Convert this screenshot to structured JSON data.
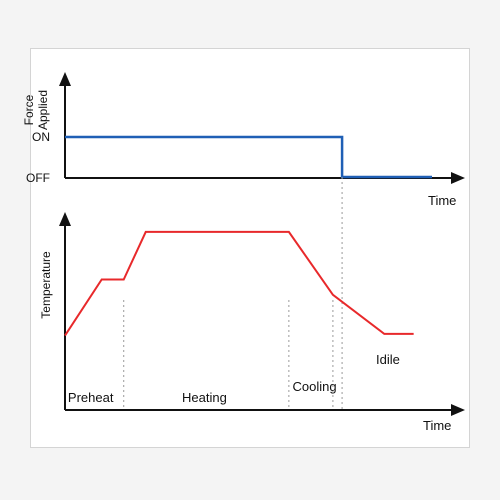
{
  "colors": {
    "force_line": "#1f5fb5",
    "temperature_line": "#e8292b",
    "axis": "#111111",
    "guide": "#9a9a9a",
    "frame_bg": "#ffffff",
    "page_bg": "#f4f4f4"
  },
  "chart_data": [
    {
      "type": "line",
      "title": "",
      "xlabel": "Time",
      "ylabel_lines": [
        "Force",
        "Applied"
      ],
      "y_ticks": [
        "ON",
        "OFF"
      ],
      "y_levels": {
        "ON": 1,
        "OFF": 0
      },
      "x_range": [
        0,
        100
      ],
      "grid": false,
      "series": [
        {
          "x": [
            0,
            75.5,
            75.5,
            100
          ],
          "y": [
            1,
            1,
            0,
            0
          ]
        }
      ]
    },
    {
      "type": "line",
      "title": "",
      "xlabel": "Time",
      "ylabel": "Temperature",
      "x_range": [
        0,
        100
      ],
      "y_range": [
        0,
        100
      ],
      "grid": false,
      "series": [
        {
          "x": [
            0,
            10,
            16,
            22,
            61,
            73,
            87,
            95
          ],
          "y": [
            32,
            65,
            65,
            93,
            93,
            56,
            33,
            33
          ]
        }
      ],
      "phase_boundaries": [
        16,
        61,
        73
      ],
      "phases": [
        {
          "label": "Preheat",
          "x": 7
        },
        {
          "label": "Heating",
          "x": 38
        },
        {
          "label": "Cooling",
          "x": 68
        },
        {
          "label": "Idile",
          "x": 88
        }
      ]
    }
  ]
}
